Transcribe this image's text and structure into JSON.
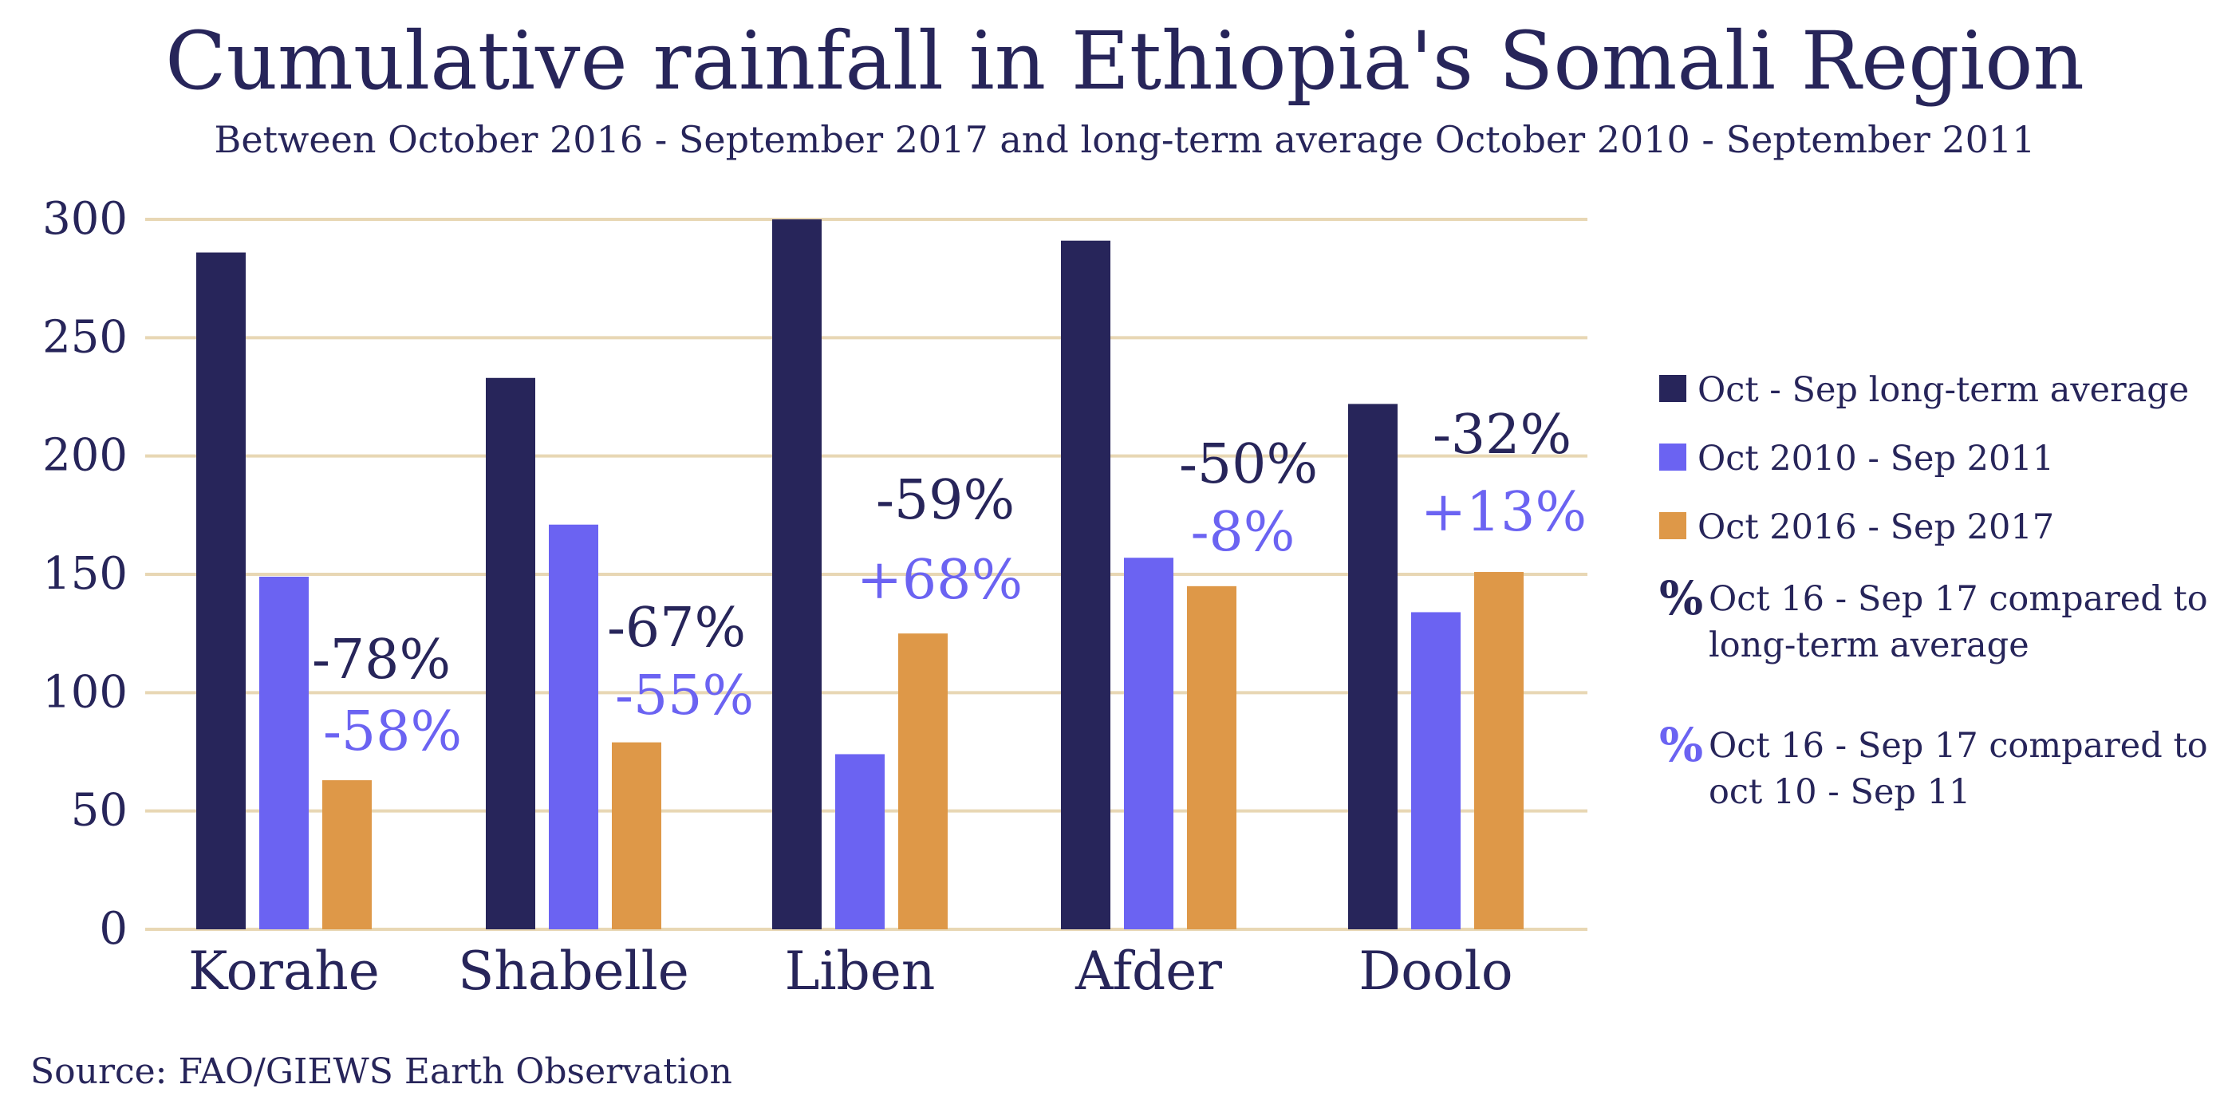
{
  "chart_data": {
    "type": "bar",
    "title": "Cumulative rainfall in Ethiopia's Somali Region",
    "subtitle": "Between October 2016 - September 2017 and long-term average October 2010 - September 2011",
    "categories": [
      "Korahe",
      "Shabelle",
      "Liben",
      "Afder",
      "Doolo"
    ],
    "series": [
      {
        "name": "Oct - Sep long-term average",
        "color": "#27255a",
        "values": [
          286,
          233,
          300,
          291,
          222
        ]
      },
      {
        "name": "Oct 2010 - Sep 2011",
        "color": "#6b63f2",
        "values": [
          149,
          171,
          74,
          157,
          134
        ]
      },
      {
        "name": "Oct 2016 - Sep 2017",
        "color": "#de9848",
        "values": [
          63,
          79,
          125,
          145,
          151
        ]
      }
    ],
    "ylim": [
      0,
      300
    ],
    "yticks": [
      "0",
      "50",
      "100",
      "150",
      "200",
      "250",
      "300"
    ],
    "grid": true,
    "legend_position": "right",
    "annotations": {
      "vs_long_term": [
        "-78%",
        "-67%",
        "-59%",
        "-50%",
        "-32%"
      ],
      "vs_2010_2011": [
        "-58%",
        "-55%",
        "+68%",
        "-8%",
        "+13%"
      ]
    },
    "colors": {
      "text": "#27255a",
      "grid": "#e8d7b4",
      "annotation_light": "#6b63f2"
    }
  },
  "legend": {
    "pct_symbol": "%",
    "note_long_term": "Oct 16 - Sep 17 compared to long-term average",
    "note_2010_2011": "Oct 16 - Sep 17 compared to oct 10 - Sep 11"
  },
  "source": "Source: FAO/GIEWS Earth Observation"
}
